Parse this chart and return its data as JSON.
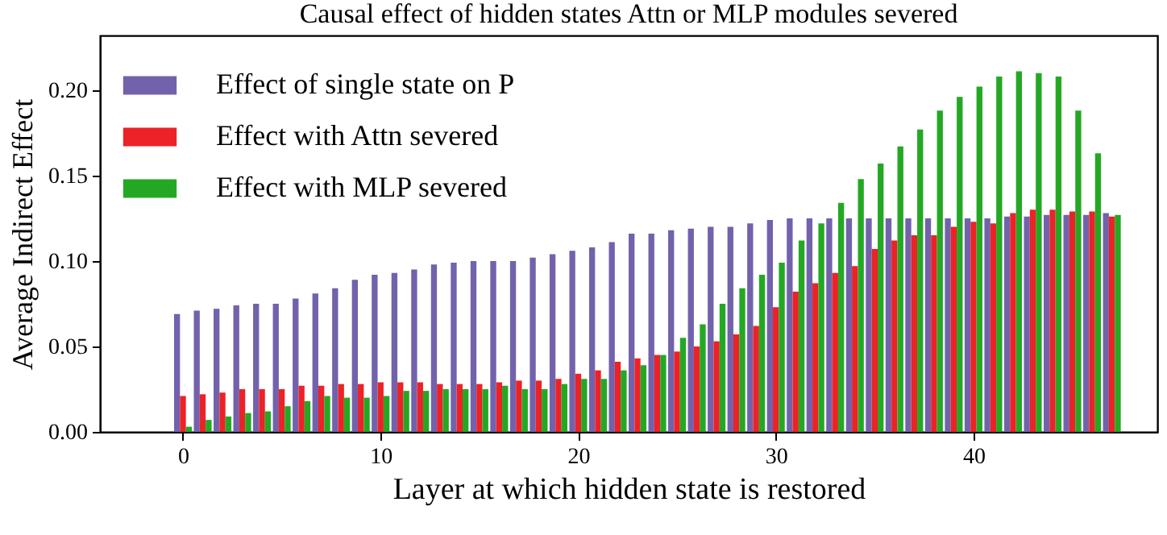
{
  "chart_data": {
    "type": "bar",
    "title": "Causal effect of hidden states Attn or MLP modules severed",
    "xlabel": "Layer at which hidden state is restored",
    "ylabel": "Average Indirect Effect",
    "x": [
      0,
      1,
      2,
      3,
      4,
      5,
      6,
      7,
      8,
      9,
      10,
      11,
      12,
      13,
      14,
      15,
      16,
      17,
      18,
      19,
      20,
      21,
      22,
      23,
      24,
      25,
      26,
      27,
      28,
      29,
      30,
      31,
      32,
      33,
      34,
      35,
      36,
      37,
      38,
      39,
      40,
      41,
      42,
      43,
      44,
      45,
      46,
      47
    ],
    "series": [
      {
        "name": "Effect of single state on P",
        "color": "#7262ac",
        "values": [
          0.069,
          0.071,
          0.072,
          0.074,
          0.075,
          0.075,
          0.078,
          0.081,
          0.084,
          0.089,
          0.092,
          0.093,
          0.095,
          0.098,
          0.099,
          0.1,
          0.1,
          0.1,
          0.102,
          0.104,
          0.106,
          0.108,
          0.111,
          0.116,
          0.116,
          0.118,
          0.119,
          0.12,
          0.12,
          0.122,
          0.124,
          0.125,
          0.125,
          0.125,
          0.125,
          0.125,
          0.125,
          0.125,
          0.125,
          0.125,
          0.125,
          0.125,
          0.126,
          0.126,
          0.127,
          0.127,
          0.127,
          0.128
        ]
      },
      {
        "name": "Effect with Attn severed",
        "color": "#ec2227",
        "values": [
          0.021,
          0.022,
          0.023,
          0.025,
          0.025,
          0.025,
          0.027,
          0.027,
          0.028,
          0.028,
          0.029,
          0.029,
          0.029,
          0.028,
          0.028,
          0.028,
          0.029,
          0.03,
          0.03,
          0.031,
          0.034,
          0.036,
          0.041,
          0.043,
          0.045,
          0.047,
          0.05,
          0.053,
          0.057,
          0.062,
          0.073,
          0.082,
          0.087,
          0.093,
          0.097,
          0.107,
          0.112,
          0.115,
          0.115,
          0.12,
          0.123,
          0.122,
          0.128,
          0.13,
          0.13,
          0.129,
          0.129,
          0.126
        ]
      },
      {
        "name": "Effect with MLP severed",
        "color": "#24a824",
        "values": [
          0.003,
          0.007,
          0.009,
          0.011,
          0.012,
          0.015,
          0.018,
          0.021,
          0.02,
          0.02,
          0.021,
          0.024,
          0.024,
          0.025,
          0.025,
          0.025,
          0.027,
          0.025,
          0.025,
          0.028,
          0.031,
          0.031,
          0.036,
          0.039,
          0.045,
          0.055,
          0.063,
          0.075,
          0.084,
          0.092,
          0.099,
          0.112,
          0.122,
          0.134,
          0.148,
          0.157,
          0.167,
          0.177,
          0.188,
          0.196,
          0.202,
          0.208,
          0.211,
          0.21,
          0.208,
          0.188,
          0.163,
          0.127
        ]
      }
    ],
    "xlim": [
      -4.2,
      49.3
    ],
    "xticks": [
      0,
      10,
      20,
      30,
      40
    ],
    "ylim": [
      0,
      0.232
    ],
    "yticks": [
      {
        "value": 0,
        "label": "0.00"
      },
      {
        "value": 0.05,
        "label": "0.05"
      },
      {
        "value": 0.1,
        "label": "0.10"
      },
      {
        "value": 0.15,
        "label": "0.15"
      },
      {
        "value": 0.2,
        "label": "0.20"
      }
    ],
    "legend": "top left"
  }
}
